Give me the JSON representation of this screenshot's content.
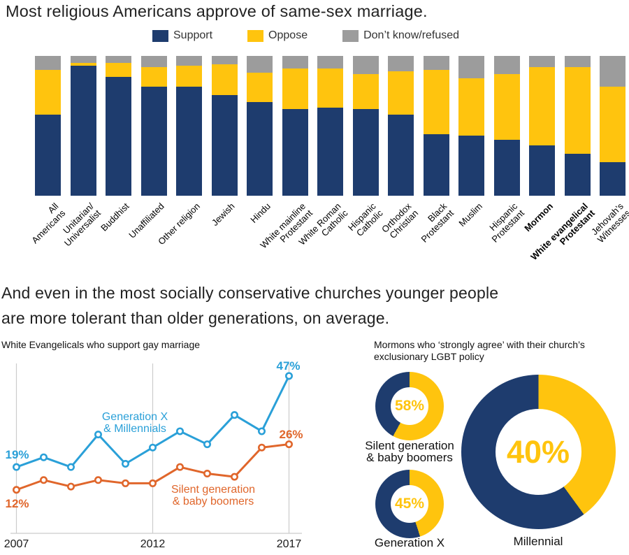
{
  "titles": {
    "main": "Most religious Americans approve of same-sex marriage.",
    "section2": "And even in the most socially conservative churches younger people\nare more tolerant than older generations, on average."
  },
  "colors": {
    "support": "#1e3c6e",
    "oppose": "#ffc40e",
    "dont_know": "#9c9c9c",
    "gen_x_millennials": "#2aa0d8",
    "silent_boomers": "#e0662b",
    "grid": "#cccccc"
  },
  "legend": [
    {
      "label": "Support",
      "color": "#1e3c6e"
    },
    {
      "label": "Oppose",
      "color": "#ffc40e"
    },
    {
      "label": "Don’t know/refused",
      "color": "#9c9c9c"
    }
  ],
  "chart_data": [
    {
      "type": "bar",
      "stacked": true,
      "title": "Most religious Americans approve of same-sex marriage.",
      "unit": "percent",
      "ylim": [
        0,
        100
      ],
      "categories": [
        "All Americans",
        "Unitarian/\nUniversalist",
        "Buddhist",
        "Unaffiliated",
        "Other religion",
        "Jewish",
        "Hindu",
        "White mainline\nProtestant",
        "White Roman\nCatholic",
        "Hispanic\nCatholic",
        "Orthodox\nChristian",
        "Black\nProtestant",
        "Muslim",
        "Hispanic\nProtestant",
        "Mormon",
        "White evangelical\nProtestant",
        "Jehovah’s\nWitnesses"
      ],
      "bold_category_indices": [
        14,
        15
      ],
      "series": [
        {
          "name": "Support",
          "color": "#1e3c6e",
          "values": [
            58,
            93,
            85,
            78,
            78,
            72,
            67,
            62,
            63,
            62,
            58,
            44,
            43,
            40,
            36,
            30,
            24
          ]
        },
        {
          "name": "Oppose",
          "color": "#ffc40e",
          "values": [
            32,
            2,
            10,
            14,
            15,
            22,
            21,
            29,
            28,
            25,
            31,
            46,
            41,
            47,
            56,
            62,
            54
          ]
        },
        {
          "name": "Don’t know/refused",
          "color": "#9c9c9c",
          "values": [
            10,
            5,
            5,
            8,
            7,
            6,
            12,
            9,
            9,
            13,
            11,
            10,
            16,
            13,
            8,
            8,
            22
          ]
        }
      ]
    },
    {
      "type": "line",
      "title": "White Evangelicals who support gay marriage",
      "unit": "percent",
      "x": [
        2007,
        2008,
        2009,
        2010,
        2011,
        2012,
        2013,
        2014,
        2015,
        2016,
        2017
      ],
      "x_ticks": [
        "2007",
        "2012",
        "2017"
      ],
      "series": [
        {
          "name": "Generation X & Millennials",
          "color": "#2aa0d8",
          "values": [
            19,
            22,
            19,
            29,
            20,
            25,
            30,
            26,
            35,
            30,
            47
          ],
          "first_label": "19%",
          "last_label": "47%"
        },
        {
          "name": "Silent generation & baby boomers",
          "color": "#e0662b",
          "values": [
            12,
            15,
            13,
            15,
            14,
            14,
            19,
            17,
            16,
            25,
            26
          ],
          "first_label": "12%",
          "last_label": "26%"
        }
      ]
    },
    {
      "type": "pie",
      "title": "Mormons who ‘strongly agree’ with their church’s\nexclusionary LGBT policy",
      "unit": "percent",
      "colors": {
        "agree": "#ffc40e",
        "rest": "#1e3c6e"
      },
      "donuts": [
        {
          "label": "Silent generation & baby boomers",
          "value": 58,
          "display": "58%",
          "size": "small"
        },
        {
          "label": "Generation X",
          "value": 45,
          "display": "45%",
          "size": "small"
        },
        {
          "label": "Millennial",
          "value": 40,
          "display": "40%",
          "size": "large"
        }
      ]
    }
  ]
}
